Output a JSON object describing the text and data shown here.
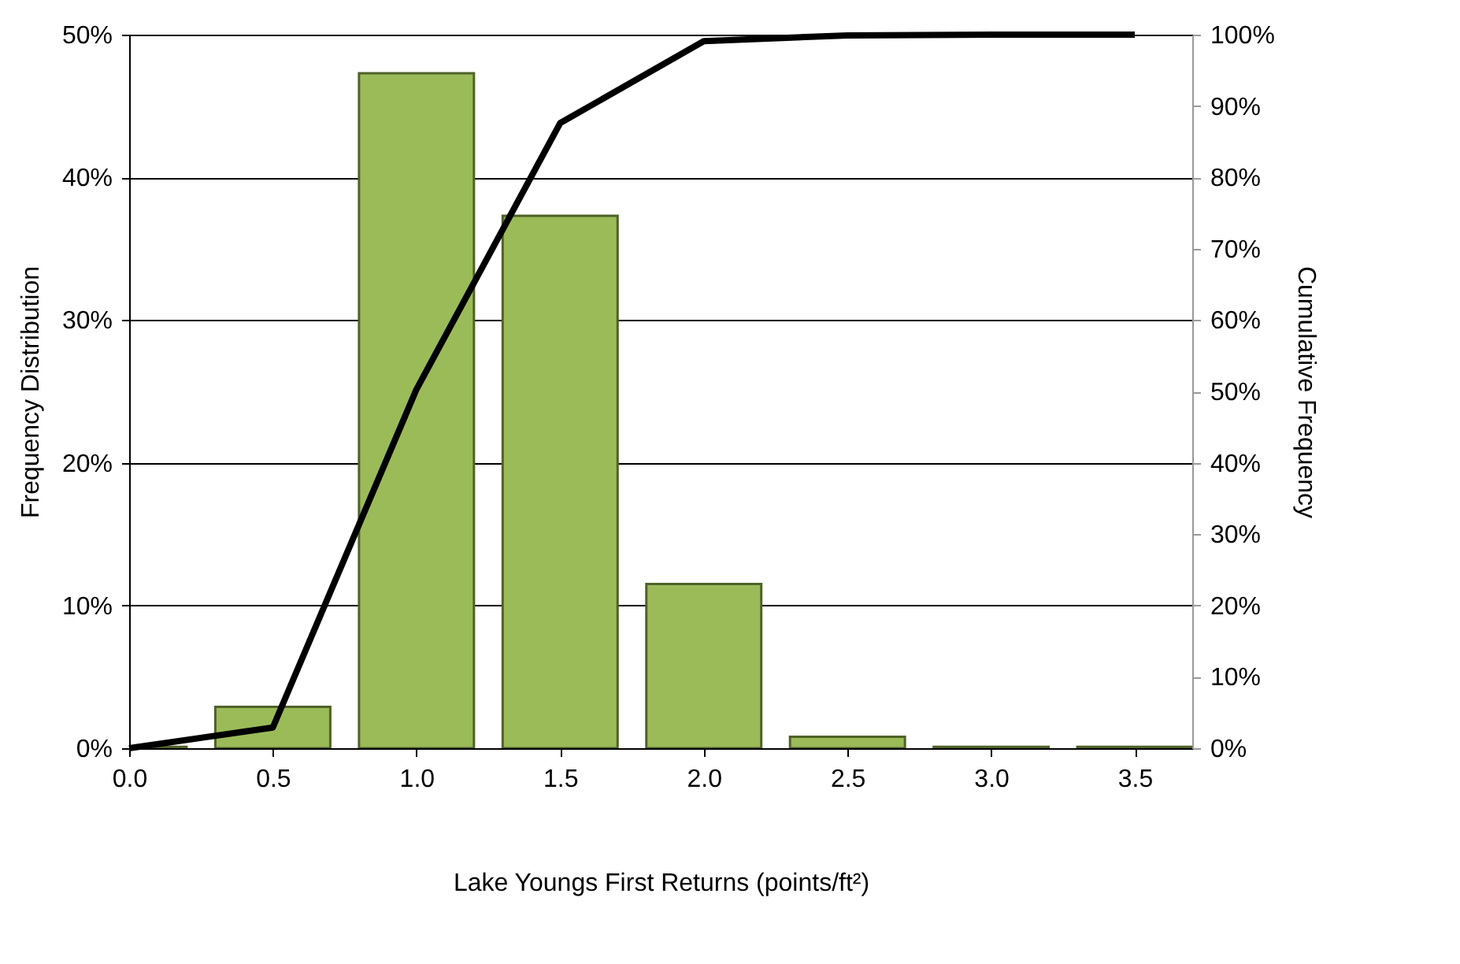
{
  "chart_data": {
    "type": "bar",
    "xlabel": "Lake Youngs First Returns (points/ft²)",
    "ylabel": "Frequency Distribution",
    "y2label": "Cumulative Frequency",
    "x": [
      0,
      0.5,
      1,
      1.5,
      2,
      2.5,
      3,
      3.5
    ],
    "series": [
      {
        "color": "#9bbb59",
        "values": [
          0.1,
          2.9,
          47.3,
          37.3,
          11.5,
          0.8,
          0.1,
          0.1
        ]
      },
      {
        "type": "line",
        "axis": "y2",
        "color": "#000000",
        "values": [
          0,
          2.9,
          50.3,
          87.6,
          99.1,
          99.9,
          100,
          100
        ]
      }
    ],
    "xlim": [
      0,
      3.7
    ],
    "xticks": [
      {
        "value": 0,
        "label": "0.0"
      },
      {
        "value": 0.5,
        "label": "0.5"
      },
      {
        "value": 1,
        "label": "1.0"
      },
      {
        "value": 1.5,
        "label": "1.5"
      },
      {
        "value": 2,
        "label": "2.0"
      },
      {
        "value": 2.5,
        "label": "2.5"
      },
      {
        "value": 3,
        "label": "3.0"
      },
      {
        "value": 3.5,
        "label": "3.5"
      }
    ],
    "ylim": [
      0,
      50
    ],
    "yticks": [
      {
        "value": 0,
        "label": "0%"
      },
      {
        "value": 10,
        "label": "10%"
      },
      {
        "value": 20,
        "label": "20%"
      },
      {
        "value": 30,
        "label": "30%"
      },
      {
        "value": 40,
        "label": "40%"
      },
      {
        "value": 50,
        "label": "50%"
      }
    ],
    "y2lim": [
      0,
      100
    ],
    "y2ticks": [
      {
        "value": 0,
        "label": "0%"
      },
      {
        "value": 10,
        "label": "10%"
      },
      {
        "value": 20,
        "label": "20%"
      },
      {
        "value": 30,
        "label": "30%"
      },
      {
        "value": 40,
        "label": "40%"
      },
      {
        "value": 50,
        "label": "50%"
      },
      {
        "value": 60,
        "label": "60%"
      },
      {
        "value": 70,
        "label": "70%"
      },
      {
        "value": 80,
        "label": "80%"
      },
      {
        "value": 90,
        "label": "90%"
      },
      {
        "value": 100,
        "label": "100%"
      }
    ],
    "grid": "y",
    "marker": "none",
    "line_style": "solid"
  }
}
